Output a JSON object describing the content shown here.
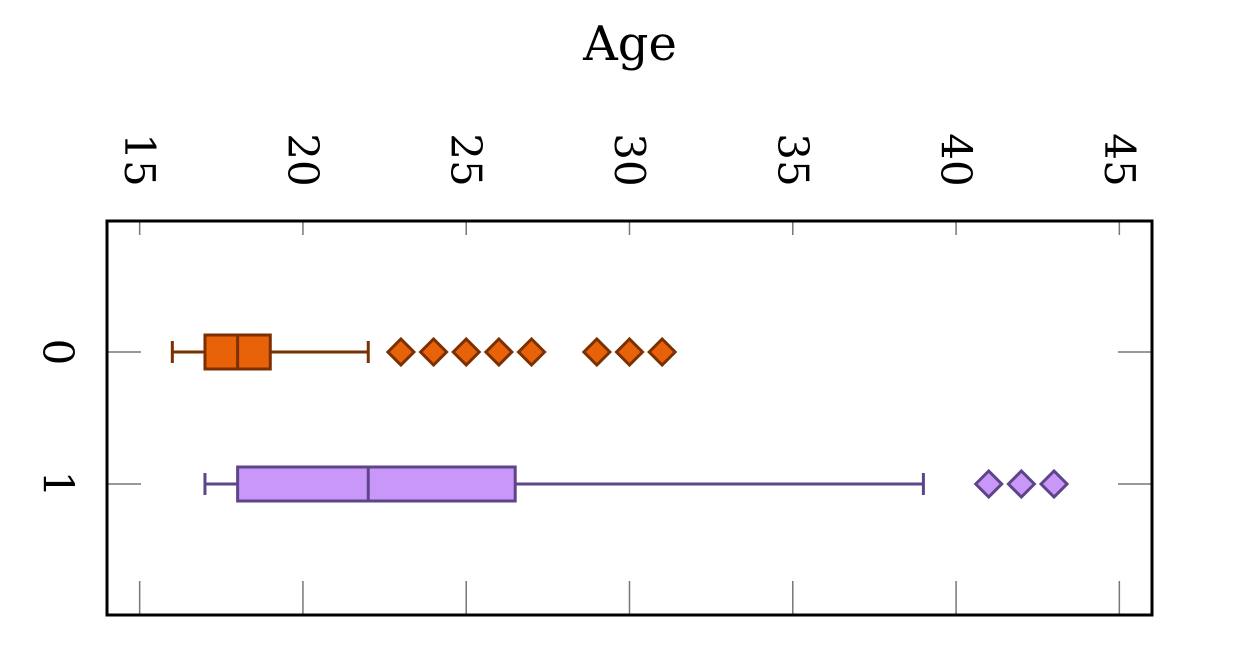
{
  "chart_data": {
    "type": "box",
    "title": "Age",
    "xlabel": "",
    "ylabel": "",
    "xlim": [
      14.0,
      46.0
    ],
    "x_ticks": [
      15,
      20,
      25,
      30,
      35,
      40,
      45
    ],
    "grid": false,
    "legend": "none",
    "categories": [
      "0",
      "1"
    ],
    "series": [
      {
        "category": "0",
        "whisker_low": 16,
        "q1": 17,
        "median": 18,
        "q3": 19,
        "whisker_high": 22,
        "outliers": [
          23,
          24,
          25,
          26,
          27,
          29,
          30,
          31
        ],
        "fill": "#e8620a",
        "stroke": "#7a3000"
      },
      {
        "category": "1",
        "whisker_low": 17,
        "q1": 18,
        "median": 22,
        "q3": 26.5,
        "whisker_high": 39,
        "outliers": [
          41,
          42,
          43
        ],
        "fill": "#c897f7",
        "stroke": "#5e4489"
      }
    ]
  }
}
